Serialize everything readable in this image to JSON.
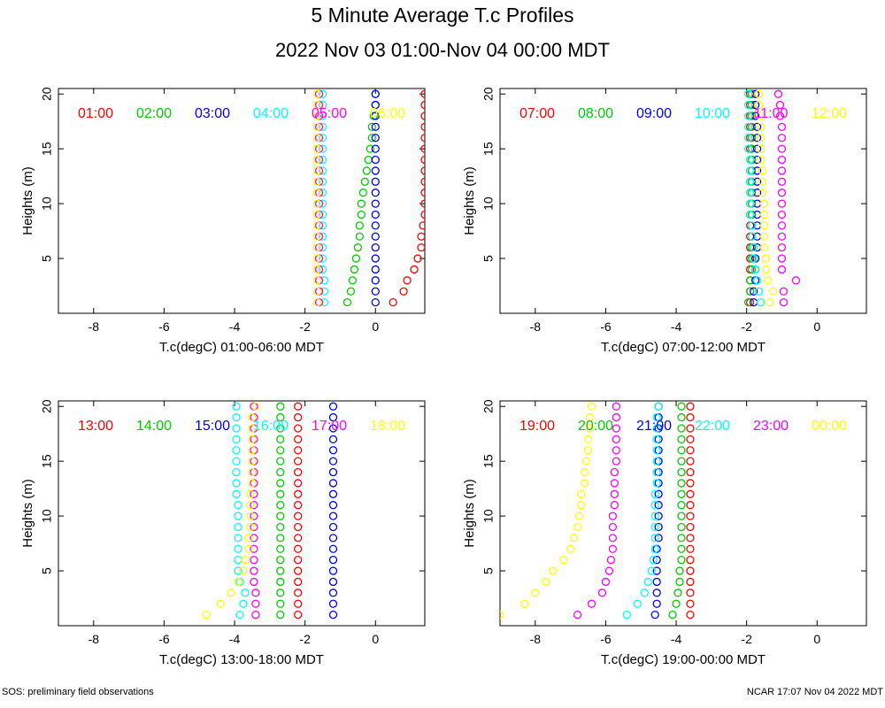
{
  "title": "5 Minute Average T.c Profiles",
  "subtitle": "2022 Nov 03 01:00-Nov 04 00:00 MDT",
  "footer_left": "SOS: preliminary field observations",
  "footer_right": "NCAR 17:07 Nov 04 2022 MDT",
  "series_colors": [
    "#ff0000",
    "#00cc00",
    "#0000ff",
    "#00ffff",
    "#ff00ff",
    "#ffff00"
  ],
  "chart_data": [
    {
      "type": "scatter",
      "xlabel": "T.c(degC) 01:00-06:00 MDT",
      "ylabel": "Heights (m)",
      "xlim": [
        -9,
        1.4
      ],
      "ylim": [
        0,
        20.5
      ],
      "xticks": [
        -8,
        -6,
        -4,
        -2,
        0
      ],
      "yticks": [
        5,
        10,
        15,
        20
      ],
      "heights": [
        1,
        2,
        3,
        4,
        5,
        6,
        7,
        8,
        9,
        10,
        11,
        12,
        13,
        14,
        15,
        16,
        17,
        18,
        19,
        20
      ],
      "series": [
        {
          "name": "01:00",
          "values": [
            0.5,
            0.8,
            0.9,
            1.1,
            1.2,
            1.3,
            1.3,
            1.35,
            1.4,
            1.4,
            1.4,
            1.4,
            1.4,
            1.4,
            1.4,
            1.4,
            1.4,
            1.4,
            1.4,
            1.4
          ]
        },
        {
          "name": "02:00",
          "values": [
            -0.8,
            -0.7,
            -0.65,
            -0.6,
            -0.55,
            -0.5,
            -0.45,
            -0.45,
            -0.4,
            -0.4,
            -0.35,
            -0.3,
            -0.25,
            -0.2,
            -0.15,
            -0.1,
            -0.1,
            -0.05,
            0,
            0
          ]
        },
        {
          "name": "03:00",
          "values": [
            0,
            0,
            0,
            0,
            0,
            0,
            0,
            0,
            0,
            0,
            0,
            0,
            0,
            0,
            0,
            0,
            0,
            0,
            0,
            0
          ]
        },
        {
          "name": "04:00",
          "values": [
            -1.45,
            -1.45,
            -1.45,
            -1.5,
            -1.5,
            -1.5,
            -1.5,
            -1.5,
            -1.5,
            -1.5,
            -1.5,
            -1.5,
            -1.5,
            -1.5,
            -1.5,
            -1.5,
            -1.5,
            -1.5,
            -1.5,
            -1.5
          ]
        },
        {
          "name": "05:00",
          "values": [
            -1.6,
            -1.6,
            -1.6,
            -1.6,
            -1.6,
            -1.6,
            -1.6,
            -1.6,
            -1.6,
            -1.6,
            -1.6,
            -1.6,
            -1.6,
            -1.6,
            -1.6,
            -1.6,
            -1.6,
            -1.6,
            -1.6,
            -1.6
          ]
        },
        {
          "name": "06:00",
          "values": [
            -1.65,
            -1.65,
            -1.65,
            -1.65,
            -1.65,
            -1.65,
            -1.65,
            -1.65,
            -1.65,
            -1.65,
            -1.65,
            -1.65,
            -1.65,
            -1.65,
            -1.65,
            -1.65,
            -1.65,
            -1.65,
            -1.65,
            -1.65
          ]
        }
      ]
    },
    {
      "type": "scatter",
      "xlabel": "T.c(degC) 07:00-12:00 MDT",
      "ylabel": "Heights (m)",
      "xlim": [
        -9,
        1.4
      ],
      "ylim": [
        0,
        20.5
      ],
      "xticks": [
        -8,
        -6,
        -4,
        -2,
        0
      ],
      "yticks": [
        5,
        10,
        15,
        20
      ],
      "heights": [
        1,
        2,
        3,
        4,
        5,
        6,
        7,
        8,
        9,
        10,
        11,
        12,
        13,
        14,
        15,
        16,
        17,
        18,
        19,
        20
      ],
      "series": [
        {
          "name": "07:00",
          "values": [
            -1.9,
            -1.9,
            -1.9,
            -1.9,
            -1.9,
            -1.9,
            -1.9,
            -1.9,
            -1.9,
            -1.9,
            -1.9,
            -1.9,
            -1.9,
            -1.9,
            -1.9,
            -1.9,
            -1.9,
            -1.9,
            -1.9,
            -1.9
          ]
        },
        {
          "name": "08:00",
          "values": [
            -1.95,
            -1.9,
            -1.9,
            -1.85,
            -1.85,
            -1.85,
            -1.85,
            -1.85,
            -1.85,
            -1.85,
            -1.85,
            -1.85,
            -1.85,
            -1.85,
            -1.85,
            -1.85,
            -1.85,
            -1.85,
            -1.85,
            -1.85
          ]
        },
        {
          "name": "09:00",
          "values": [
            -1.8,
            -1.8,
            -1.75,
            -1.75,
            -1.75,
            -1.7,
            -1.7,
            -1.7,
            -1.7,
            -1.7,
            -1.7,
            -1.7,
            -1.7,
            -1.7,
            -1.7,
            -1.7,
            -1.7,
            -1.75,
            -1.75,
            -1.75
          ]
        },
        {
          "name": "10:00",
          "values": [
            -1.6,
            -1.65,
            -1.7,
            -1.75,
            -1.8,
            -1.8,
            -1.85,
            -1.85,
            -1.9,
            -1.9,
            -1.9,
            -1.9,
            -1.9,
            -1.9,
            -1.95,
            -1.95,
            -1.95,
            -1.95,
            -1.95,
            -1.95
          ]
        },
        {
          "name": "11:00",
          "values": [
            -0.95,
            -0.95,
            -0.6,
            -1.0,
            -1.0,
            -1.0,
            -1.0,
            -1.0,
            -1.0,
            -1.0,
            -1.0,
            -1.0,
            -1.0,
            -1.0,
            -1.0,
            -1.0,
            -1.0,
            -1.05,
            -1.05,
            -1.1
          ]
        },
        {
          "name": "12:00",
          "values": [
            -1.35,
            -1.25,
            -1.4,
            -1.45,
            -1.45,
            -1.5,
            -1.5,
            -1.5,
            -1.5,
            -1.5,
            -1.55,
            -1.55,
            -1.55,
            -1.6,
            -1.6,
            -1.6,
            -1.6,
            -1.6,
            -1.65,
            -1.65
          ]
        }
      ]
    },
    {
      "type": "scatter",
      "xlabel": "T.c(degC) 13:00-18:00 MDT",
      "ylabel": "Heights (m)",
      "xlim": [
        -9,
        1.4
      ],
      "ylim": [
        0,
        20.5
      ],
      "xticks": [
        -8,
        -6,
        -4,
        -2,
        0
      ],
      "yticks": [
        5,
        10,
        15,
        20
      ],
      "heights": [
        1,
        2,
        3,
        4,
        5,
        6,
        7,
        8,
        9,
        10,
        11,
        12,
        13,
        14,
        15,
        16,
        17,
        18,
        19,
        20
      ],
      "series": [
        {
          "name": "13:00",
          "values": [
            -2.2,
            -2.2,
            -2.2,
            -2.2,
            -2.2,
            -2.2,
            -2.2,
            -2.2,
            -2.2,
            -2.2,
            -2.2,
            -2.2,
            -2.2,
            -2.2,
            -2.2,
            -2.2,
            -2.2,
            -2.2,
            -2.2,
            -2.2
          ]
        },
        {
          "name": "14:00",
          "values": [
            -2.7,
            -2.7,
            -2.7,
            -2.7,
            -2.7,
            -2.7,
            -2.7,
            -2.7,
            -2.7,
            -2.7,
            -2.7,
            -2.7,
            -2.7,
            -2.7,
            -2.7,
            -2.7,
            -2.7,
            -2.7,
            -2.7,
            -2.7
          ]
        },
        {
          "name": "15:00",
          "values": [
            -1.2,
            -1.2,
            -1.2,
            -1.2,
            -1.2,
            -1.2,
            -1.2,
            -1.2,
            -1.2,
            -1.2,
            -1.2,
            -1.2,
            -1.2,
            -1.2,
            -1.2,
            -1.2,
            -1.2,
            -1.2,
            -1.2,
            -1.2
          ]
        },
        {
          "name": "16:00",
          "values": [
            -3.85,
            -3.75,
            -3.7,
            -3.85,
            -3.9,
            -3.9,
            -3.9,
            -3.9,
            -3.9,
            -3.9,
            -3.9,
            -3.95,
            -3.95,
            -3.95,
            -3.95,
            -3.95,
            -3.95,
            -3.95,
            -3.95,
            -3.95
          ]
        },
        {
          "name": "17:00",
          "values": [
            -3.4,
            -3.4,
            -3.4,
            -3.45,
            -3.45,
            -3.45,
            -3.45,
            -3.45,
            -3.45,
            -3.45,
            -3.45,
            -3.45,
            -3.45,
            -3.45,
            -3.45,
            -3.45,
            -3.45,
            -3.45,
            -3.45,
            -3.45
          ]
        },
        {
          "name": "18:00",
          "values": [
            -4.8,
            -4.4,
            -4.1,
            -3.9,
            -3.75,
            -3.7,
            -3.6,
            -3.6,
            -3.55,
            -3.55,
            -3.55,
            -3.55,
            -3.5,
            -3.5,
            -3.5,
            -3.5,
            -3.5,
            -3.5,
            -3.5,
            -3.4
          ]
        }
      ]
    },
    {
      "type": "scatter",
      "xlabel": "T.c(degC) 19:00-00:00 MDT",
      "ylabel": "Heights (m)",
      "xlim": [
        -9,
        1.4
      ],
      "ylim": [
        0,
        20.5
      ],
      "xticks": [
        -8,
        -6,
        -4,
        -2,
        0
      ],
      "yticks": [
        5,
        10,
        15,
        20
      ],
      "heights": [
        1,
        2,
        3,
        4,
        5,
        6,
        7,
        8,
        9,
        10,
        11,
        12,
        13,
        14,
        15,
        16,
        17,
        18,
        19,
        20
      ],
      "series": [
        {
          "name": "19:00",
          "values": [
            -3.6,
            -3.6,
            -3.6,
            -3.6,
            -3.6,
            -3.6,
            -3.6,
            -3.6,
            -3.6,
            -3.6,
            -3.6,
            -3.6,
            -3.6,
            -3.6,
            -3.6,
            -3.6,
            -3.6,
            -3.6,
            -3.6,
            -3.6
          ]
        },
        {
          "name": "20:00",
          "values": [
            -4.1,
            -4.0,
            -3.95,
            -3.9,
            -3.9,
            -3.85,
            -3.85,
            -3.85,
            -3.85,
            -3.85,
            -3.85,
            -3.85,
            -3.85,
            -3.85,
            -3.85,
            -3.85,
            -3.85,
            -3.85,
            -3.85,
            -3.85
          ]
        },
        {
          "name": "21:00",
          "values": [
            -4.6,
            -4.55,
            -4.55,
            -4.55,
            -4.55,
            -4.55,
            -4.55,
            -4.5,
            -4.5,
            -4.5,
            -4.5,
            -4.5,
            -4.5,
            -4.5,
            -4.5,
            -4.5,
            -4.5,
            -4.5,
            -4.5,
            -4.5
          ]
        },
        {
          "name": "22:00",
          "values": [
            -5.4,
            -5.1,
            -4.9,
            -4.8,
            -4.7,
            -4.65,
            -4.6,
            -4.6,
            -4.6,
            -4.6,
            -4.6,
            -4.6,
            -4.55,
            -4.55,
            -4.55,
            -4.55,
            -4.55,
            -4.55,
            -4.55,
            -4.5
          ]
        },
        {
          "name": "23:00",
          "values": [
            -6.8,
            -6.4,
            -6.1,
            -6.0,
            -5.9,
            -5.85,
            -5.8,
            -5.8,
            -5.8,
            -5.8,
            -5.75,
            -5.75,
            -5.75,
            -5.75,
            -5.7,
            -5.7,
            -5.7,
            -5.7,
            -5.7,
            -5.7
          ]
        },
        {
          "name": "00:00",
          "values": [
            -9.0,
            -8.3,
            -8.0,
            -7.7,
            -7.5,
            -7.2,
            -7.0,
            -6.9,
            -6.8,
            -6.75,
            -6.7,
            -6.7,
            -6.6,
            -6.6,
            -6.55,
            -6.5,
            -6.5,
            -6.45,
            -6.45,
            -6.4
          ]
        }
      ]
    }
  ]
}
